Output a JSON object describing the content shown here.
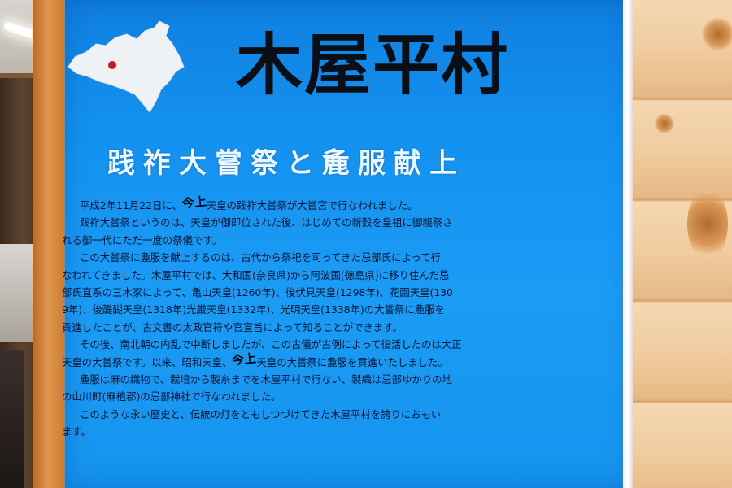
{
  "title": "木屋平村",
  "subtitle": "践祚大嘗祭と麁服献上",
  "colors": {
    "board": "#1a9cf5",
    "title": "#0a0f16",
    "subtitle": "#eef7ff",
    "body": "#071534",
    "marker": "#d0141c"
  },
  "body_lines": [
    "平成2年11月22日に、{handwritten}天皇の践祚大嘗祭が大嘗宮で行なわれました。",
    "践祚大嘗祭というのは、天皇が御即位された後、はじめての新穀を皇祖に御親祭さ",
    "れる御一代にただ一度の祭儀です。",
    "この大嘗祭に麁服を献上するのは、古代から祭祀を司ってきた忌部氏によって行",
    "なわれてきました。木屋平村では、大和国(奈良県)から阿波国(徳島県)に移り住んだ忌",
    "部氏直系の三木家によって、亀山天皇(1260年)、後伏見天皇(1298年)、花園天皇(130",
    "9年)、後醍醐天皇(1318年)光厳天皇(1332年)、光明天皇(1338年)の大嘗祭に麁服を",
    "貢進したことが、古文書の太政官符や官宣旨によって知ることができます。",
    "その後、南北朝の内乱で中断しましたが、この古儀が古例によって復活したのは大正",
    "天皇の大嘗祭です。以来、昭和天皇、{handwritten}天皇の大嘗祭に麁服を貢進いたしました。",
    "麁服は麻の織物で、栽培から製糸までを木屋平村で行ない、製織は忌部ゆかりの地",
    "の山川町(麻植郡)の忌部神社で行なわれました。",
    "このような永い歴史と、伝統の灯をともしつづけてきた木屋平村を誇りにおもい",
    "ます。"
  ],
  "handwritten_name": "今上"
}
